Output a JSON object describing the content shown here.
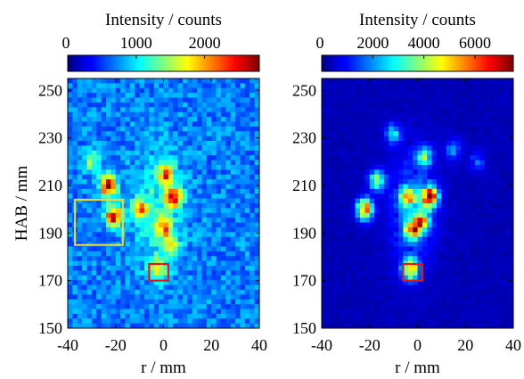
{
  "chart_data": [
    {
      "type": "heatmap",
      "xlabel": "r / mm",
      "ylabel": "HAB / mm",
      "xlim": [
        -40,
        40
      ],
      "ylim": [
        150,
        255
      ],
      "x_ticks": [
        -40,
        -20,
        0,
        20,
        40
      ],
      "y_ticks": [
        150,
        170,
        190,
        210,
        230,
        250
      ],
      "colorbar": {
        "label": "Intensity / counts",
        "range": [
          0,
          2800
        ],
        "ticks": [
          0,
          1000,
          2000
        ],
        "position": "top",
        "colormap": "jet"
      },
      "background_level": 700,
      "blobs": [
        {
          "x": -23,
          "y": 210,
          "value": 2600
        },
        {
          "x": -21,
          "y": 197,
          "value": 2300
        },
        {
          "x": 4,
          "y": 205,
          "value": 2000
        },
        {
          "x": 0,
          "y": 193,
          "value": 1700
        },
        {
          "x": 1,
          "y": 215,
          "value": 1600
        },
        {
          "x": -10,
          "y": 200,
          "value": 1500
        },
        {
          "x": -2,
          "y": 175,
          "value": 1400
        },
        {
          "x": 3,
          "y": 185,
          "value": 1300
        },
        {
          "x": -30,
          "y": 220,
          "value": 1200
        }
      ],
      "annotations": [
        {
          "shape": "rectangle",
          "color": "#e5db3a",
          "x_range": [
            -37,
            -17
          ],
          "y_range": [
            185,
            204
          ]
        },
        {
          "shape": "rectangle",
          "color": "#e01818",
          "x_range": [
            -6,
            2
          ],
          "y_range": [
            170,
            177
          ]
        }
      ]
    },
    {
      "type": "heatmap",
      "xlabel": "r / mm",
      "ylabel": "",
      "xlim": [
        -40,
        40
      ],
      "ylim": [
        150,
        255
      ],
      "x_ticks": [
        -40,
        -20,
        0,
        20,
        40
      ],
      "y_ticks": [
        150,
        170,
        190,
        210,
        230,
        250
      ],
      "colorbar": {
        "label": "Intensity / counts",
        "range": [
          0,
          7500
        ],
        "ticks": [
          0,
          2000,
          4000,
          6000
        ],
        "position": "top",
        "colormap": "jet"
      },
      "background_level": 400,
      "blobs": [
        {
          "x": 5,
          "y": 205,
          "value": 7000
        },
        {
          "x": -22,
          "y": 200,
          "value": 6000
        },
        {
          "x": -2,
          "y": 192,
          "value": 5500
        },
        {
          "x": -3,
          "y": 175,
          "value": 5200
        },
        {
          "x": -4,
          "y": 205,
          "value": 4500
        },
        {
          "x": 2,
          "y": 195,
          "value": 4200
        },
        {
          "x": -17,
          "y": 212,
          "value": 3500
        },
        {
          "x": 3,
          "y": 222,
          "value": 3000
        },
        {
          "x": -10,
          "y": 232,
          "value": 2200
        },
        {
          "x": 15,
          "y": 225,
          "value": 1800
        },
        {
          "x": 25,
          "y": 220,
          "value": 1400
        }
      ],
      "annotations": [
        {
          "shape": "rectangle",
          "color": "#e01818",
          "x_range": [
            -6,
            2
          ],
          "y_range": [
            170,
            177
          ]
        }
      ]
    }
  ]
}
